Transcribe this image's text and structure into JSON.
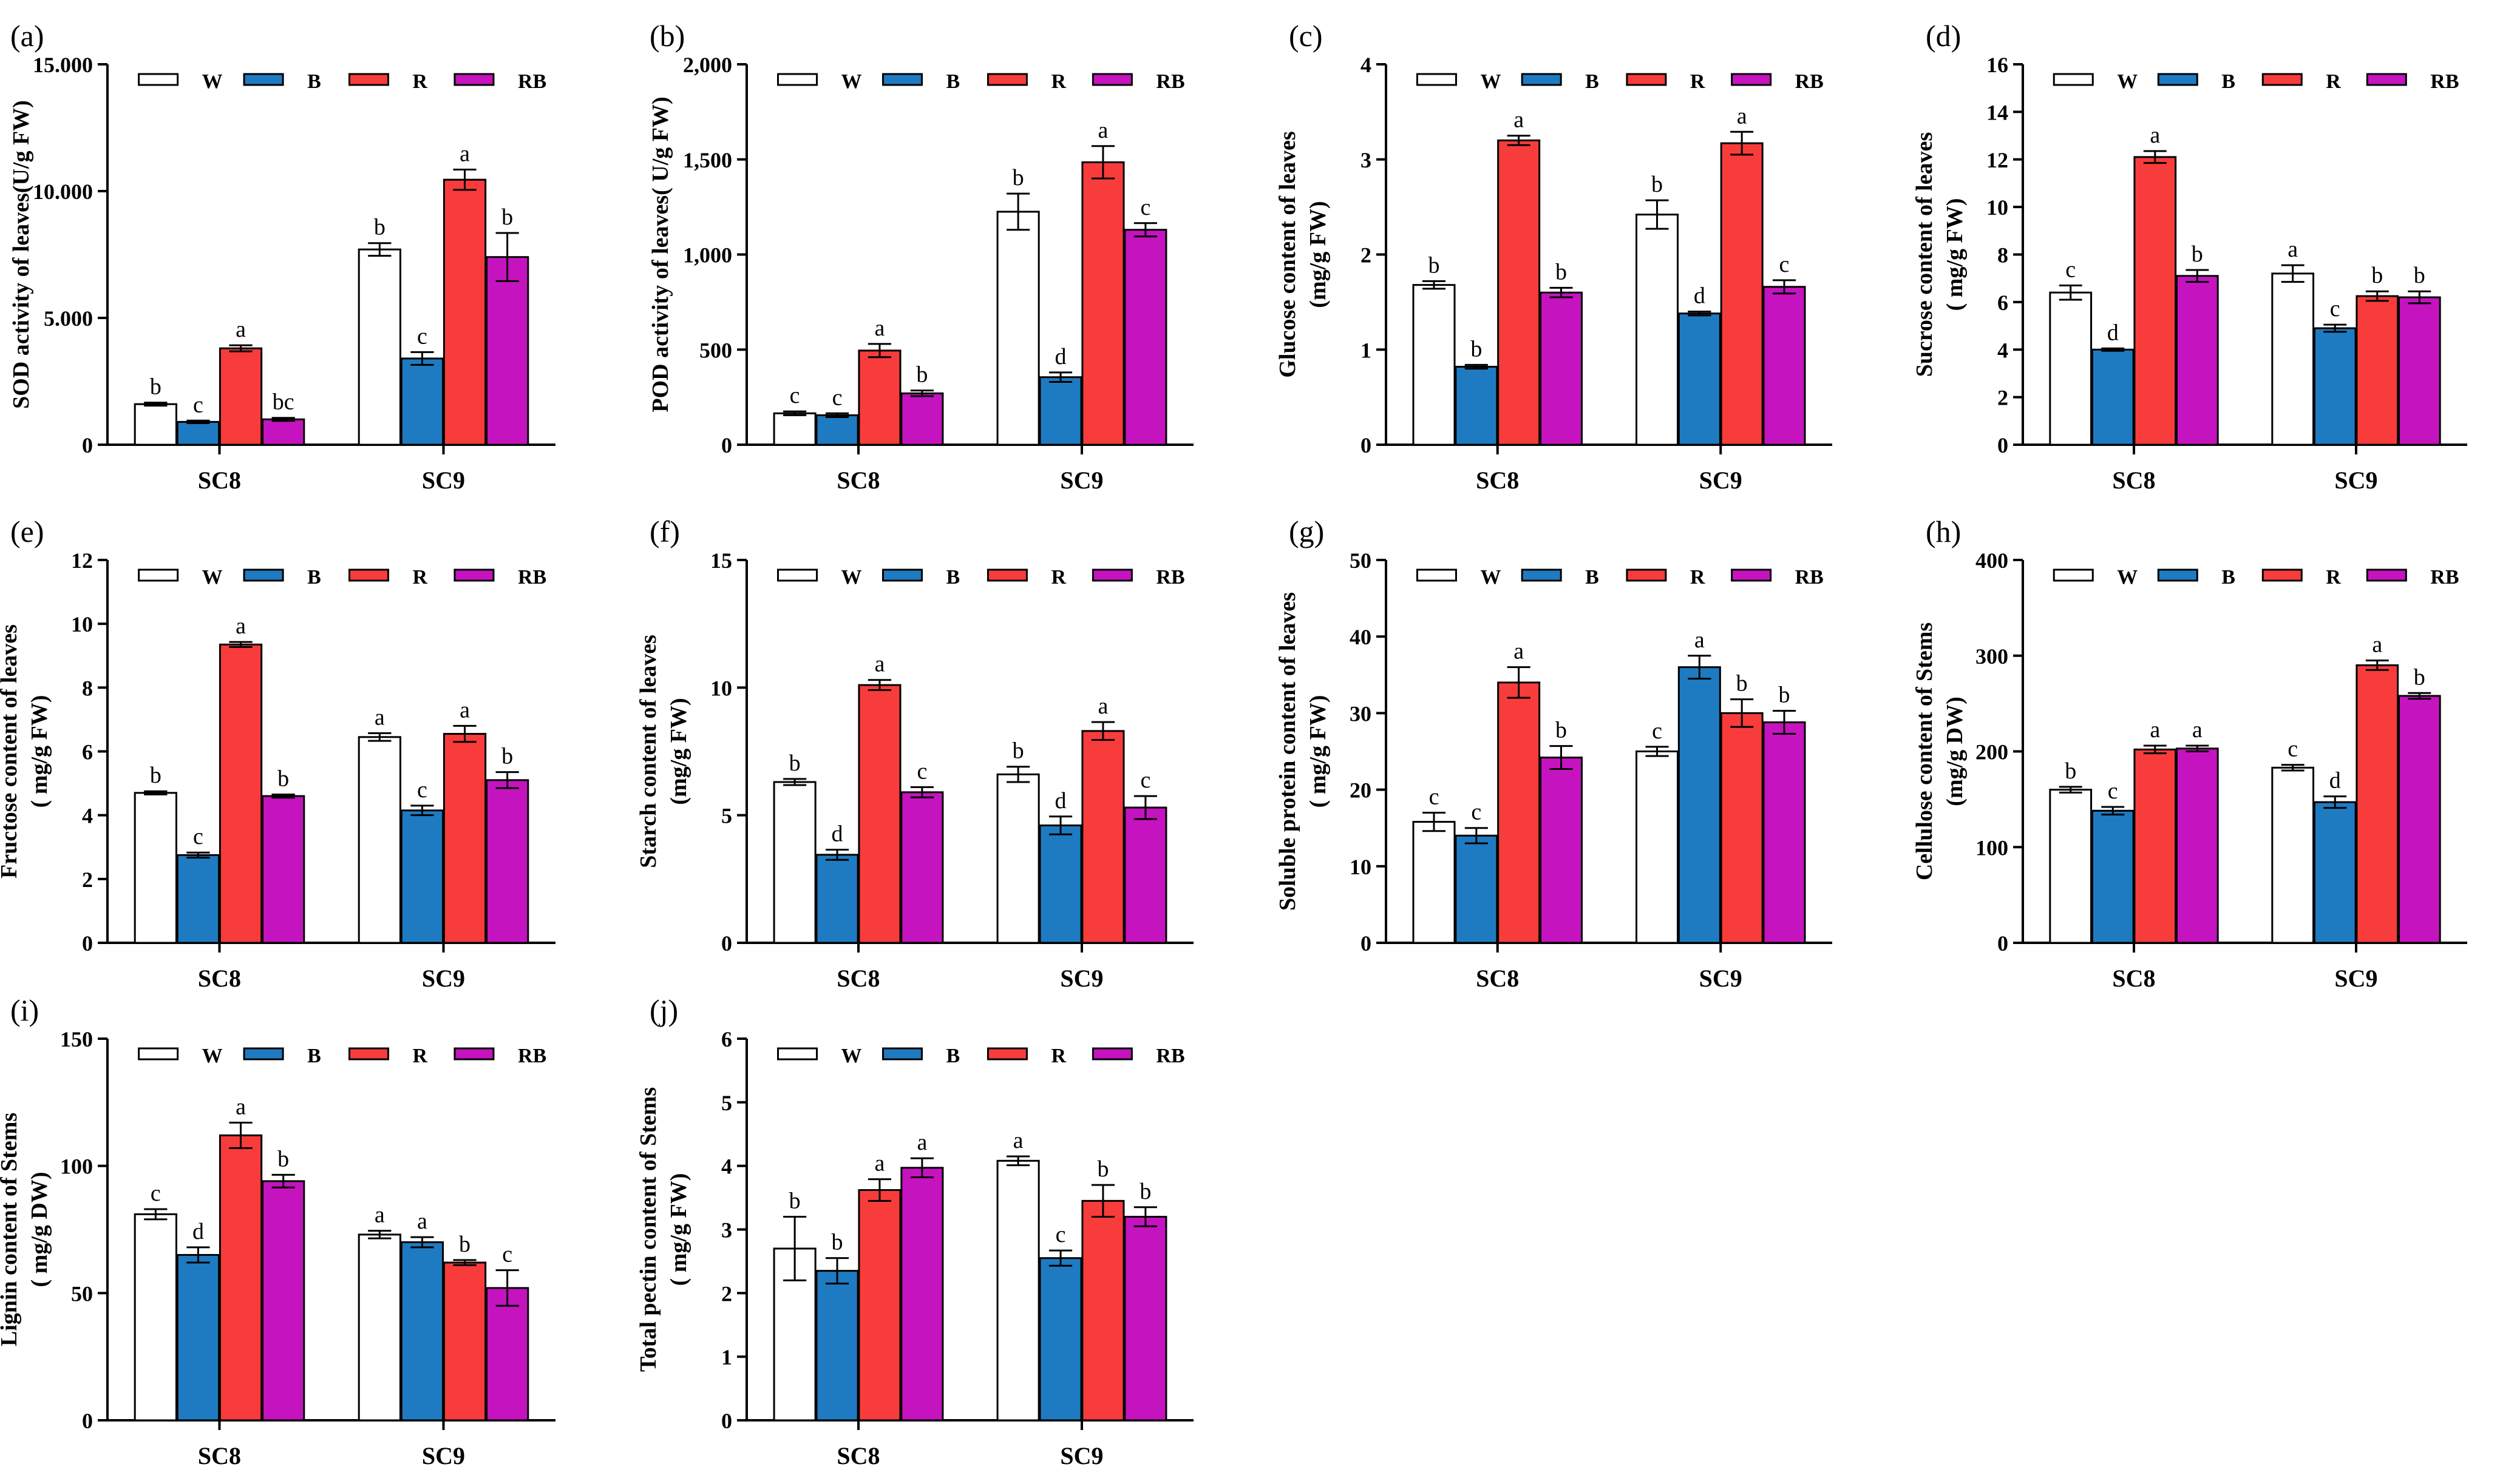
{
  "legend": {
    "labels": [
      "W",
      "B",
      "R",
      "RB"
    ],
    "colors": [
      "#ffffff",
      "#1f7bc1",
      "#f83c3c",
      "#c613c0"
    ]
  },
  "chart_data": [
    {
      "panel": "(a)",
      "type": "bar",
      "ylabel": [
        "SOD activity of leaves(U/g FW)"
      ],
      "ylim": [
        0,
        15000
      ],
      "ytick_values": [
        0,
        5000,
        10000,
        15000
      ],
      "ytick_labels": [
        "0",
        "5.000",
        "10.000",
        "15.000"
      ],
      "categories": [
        "SC8",
        "SC9"
      ],
      "series": [
        {
          "name": "W",
          "values": [
            1600,
            7700
          ],
          "errors": [
            60,
            250
          ],
          "letters": [
            "b",
            "b"
          ]
        },
        {
          "name": "B",
          "values": [
            900,
            3400
          ],
          "errors": [
            50,
            250
          ],
          "letters": [
            "c",
            "c"
          ]
        },
        {
          "name": "R",
          "values": [
            3800,
            10450
          ],
          "errors": [
            120,
            400
          ],
          "letters": [
            "a",
            "a"
          ]
        },
        {
          "name": "RB",
          "values": [
            1000,
            7400
          ],
          "errors": [
            60,
            950
          ],
          "letters": [
            "bc",
            "b"
          ]
        }
      ]
    },
    {
      "panel": "(b)",
      "type": "bar",
      "ylabel": [
        "POD activity of leaves( U/g FW)"
      ],
      "ylim": [
        0,
        2000
      ],
      "ytick_values": [
        0,
        500,
        1000,
        1500,
        2000
      ],
      "ytick_labels": [
        "0",
        "500",
        "1,000",
        "1,500",
        "2,000"
      ],
      "categories": [
        "SC8",
        "SC9"
      ],
      "series": [
        {
          "name": "W",
          "values": [
            165,
            1225
          ],
          "errors": [
            10,
            95
          ],
          "letters": [
            "c",
            "b"
          ]
        },
        {
          "name": "B",
          "values": [
            155,
            355
          ],
          "errors": [
            10,
            25
          ],
          "letters": [
            "c",
            "d"
          ]
        },
        {
          "name": "R",
          "values": [
            495,
            1485
          ],
          "errors": [
            35,
            85
          ],
          "letters": [
            "a",
            "a"
          ]
        },
        {
          "name": "RB",
          "values": [
            270,
            1130
          ],
          "errors": [
            15,
            35
          ],
          "letters": [
            "b",
            "c"
          ]
        }
      ]
    },
    {
      "panel": "(c)",
      "type": "bar",
      "ylabel": [
        "Glucose content of leaves",
        "(mg/g FW)"
      ],
      "ylim": [
        0,
        4
      ],
      "ytick_values": [
        0,
        1,
        2,
        3,
        4
      ],
      "ytick_labels": [
        "0",
        "1",
        "2",
        "3",
        "4"
      ],
      "categories": [
        "SC8",
        "SC9"
      ],
      "series": [
        {
          "name": "W",
          "values": [
            1.68,
            2.42
          ],
          "errors": [
            0.04,
            0.15
          ],
          "letters": [
            "b",
            "b"
          ]
        },
        {
          "name": "B",
          "values": [
            0.82,
            1.38
          ],
          "errors": [
            0.02,
            0.02
          ],
          "letters": [
            "b",
            "d"
          ]
        },
        {
          "name": "R",
          "values": [
            3.2,
            3.17
          ],
          "errors": [
            0.05,
            0.12
          ],
          "letters": [
            "a",
            "a"
          ]
        },
        {
          "name": "RB",
          "values": [
            1.6,
            1.66
          ],
          "errors": [
            0.05,
            0.07
          ],
          "letters": [
            "b",
            "c"
          ]
        }
      ]
    },
    {
      "panel": "(d)",
      "type": "bar",
      "ylabel": [
        "Sucrose content of leaves",
        "( mg/g FW)"
      ],
      "ylim": [
        0,
        16
      ],
      "ytick_values": [
        0,
        2,
        4,
        6,
        8,
        10,
        12,
        14,
        16
      ],
      "ytick_labels": [
        "0",
        "2",
        "4",
        "6",
        "8",
        "10",
        "12",
        "14",
        "16"
      ],
      "categories": [
        "SC8",
        "SC9"
      ],
      "series": [
        {
          "name": "W",
          "values": [
            6.4,
            7.2
          ],
          "errors": [
            0.3,
            0.35
          ],
          "letters": [
            "c",
            "a"
          ]
        },
        {
          "name": "B",
          "values": [
            4.0,
            4.9
          ],
          "errors": [
            0.05,
            0.15
          ],
          "letters": [
            "d",
            "c"
          ]
        },
        {
          "name": "R",
          "values": [
            12.1,
            6.25
          ],
          "errors": [
            0.25,
            0.2
          ],
          "letters": [
            "a",
            "b"
          ]
        },
        {
          "name": "RB",
          "values": [
            7.1,
            6.2
          ],
          "errors": [
            0.25,
            0.25
          ],
          "letters": [
            "b",
            "b"
          ]
        }
      ]
    },
    {
      "panel": "(e)",
      "type": "bar",
      "ylabel": [
        "Fructose content of leaves",
        "( mg/g FW)"
      ],
      "ylim": [
        0,
        12
      ],
      "ytick_values": [
        0,
        2,
        4,
        6,
        8,
        10,
        12
      ],
      "ytick_labels": [
        "0",
        "2",
        "4",
        "6",
        "8",
        "10",
        "12"
      ],
      "categories": [
        "SC8",
        "SC9"
      ],
      "series": [
        {
          "name": "W",
          "values": [
            4.7,
            6.45
          ],
          "errors": [
            0.05,
            0.12
          ],
          "letters": [
            "b",
            "a"
          ]
        },
        {
          "name": "B",
          "values": [
            2.75,
            4.15
          ],
          "errors": [
            0.08,
            0.15
          ],
          "letters": [
            "c",
            "c"
          ]
        },
        {
          "name": "R",
          "values": [
            9.35,
            6.55
          ],
          "errors": [
            0.08,
            0.25
          ],
          "letters": [
            "a",
            "a"
          ]
        },
        {
          "name": "RB",
          "values": [
            4.6,
            5.1
          ],
          "errors": [
            0.05,
            0.25
          ],
          "letters": [
            "b",
            "b"
          ]
        }
      ]
    },
    {
      "panel": "(f)",
      "type": "bar",
      "ylabel": [
        "Starch content of leaves",
        "(mg/g FW)"
      ],
      "ylim": [
        0,
        15
      ],
      "ytick_values": [
        0,
        5,
        10,
        15
      ],
      "ytick_labels": [
        "0",
        "5",
        "10",
        "15"
      ],
      "categories": [
        "SC8",
        "SC9"
      ],
      "series": [
        {
          "name": "W",
          "values": [
            6.3,
            6.6
          ],
          "errors": [
            0.12,
            0.3
          ],
          "letters": [
            "b",
            "b"
          ]
        },
        {
          "name": "B",
          "values": [
            3.45,
            4.6
          ],
          "errors": [
            0.2,
            0.35
          ],
          "letters": [
            "d",
            "d"
          ]
        },
        {
          "name": "R",
          "values": [
            10.1,
            8.3
          ],
          "errors": [
            0.2,
            0.35
          ],
          "letters": [
            "a",
            "a"
          ]
        },
        {
          "name": "RB",
          "values": [
            5.9,
            5.3
          ],
          "errors": [
            0.2,
            0.45
          ],
          "letters": [
            "c",
            "c"
          ]
        }
      ]
    },
    {
      "panel": "(g)",
      "type": "bar",
      "ylabel": [
        "Soluble protein content of leaves",
        "( mg/g FW)"
      ],
      "ylim": [
        0,
        50
      ],
      "ytick_values": [
        0,
        10,
        20,
        30,
        40,
        50
      ],
      "ytick_labels": [
        "0",
        "10",
        "20",
        "30",
        "40",
        "50"
      ],
      "categories": [
        "SC8",
        "SC9"
      ],
      "series": [
        {
          "name": "W",
          "values": [
            15.8,
            25.0
          ],
          "errors": [
            1.2,
            0.6
          ],
          "letters": [
            "c",
            "c"
          ]
        },
        {
          "name": "B",
          "values": [
            14.0,
            36.0
          ],
          "errors": [
            1.0,
            1.5
          ],
          "letters": [
            "c",
            "a"
          ]
        },
        {
          "name": "R",
          "values": [
            34.0,
            30.0
          ],
          "errors": [
            2.0,
            1.8
          ],
          "letters": [
            "a",
            "b"
          ]
        },
        {
          "name": "RB",
          "values": [
            24.2,
            28.8
          ],
          "errors": [
            1.5,
            1.5
          ],
          "letters": [
            "b",
            "b"
          ]
        }
      ]
    },
    {
      "panel": "(h)",
      "type": "bar",
      "ylabel": [
        "Cellulose content of Stems",
        "(mg/g DW)"
      ],
      "ylim": [
        0,
        400
      ],
      "ytick_values": [
        0,
        100,
        200,
        300,
        400
      ],
      "ytick_labels": [
        "0",
        "100",
        "200",
        "300",
        "400"
      ],
      "categories": [
        "SC8",
        "SC9"
      ],
      "series": [
        {
          "name": "W",
          "values": [
            160,
            183
          ],
          "errors": [
            3,
            3
          ],
          "letters": [
            "b",
            "c"
          ]
        },
        {
          "name": "B",
          "values": [
            138,
            147
          ],
          "errors": [
            4,
            6
          ],
          "letters": [
            "c",
            "d"
          ]
        },
        {
          "name": "R",
          "values": [
            202,
            290
          ],
          "errors": [
            4,
            5
          ],
          "letters": [
            "a",
            "a"
          ]
        },
        {
          "name": "RB",
          "values": [
            203,
            258
          ],
          "errors": [
            3,
            3
          ],
          "letters": [
            "a",
            "b"
          ]
        }
      ]
    },
    {
      "panel": "(i)",
      "type": "bar",
      "ylabel": [
        "Lignin content of Stems",
        "( mg/g DW)"
      ],
      "ylim": [
        0,
        150
      ],
      "ytick_values": [
        0,
        50,
        100,
        150
      ],
      "ytick_labels": [
        "0",
        "50",
        "100",
        "150"
      ],
      "categories": [
        "SC8",
        "SC9"
      ],
      "series": [
        {
          "name": "W",
          "values": [
            81,
            73
          ],
          "errors": [
            2,
            1.5
          ],
          "letters": [
            "c",
            "a"
          ]
        },
        {
          "name": "B",
          "values": [
            65,
            70
          ],
          "errors": [
            3,
            2
          ],
          "letters": [
            "d",
            "a"
          ]
        },
        {
          "name": "R",
          "values": [
            112,
            62
          ],
          "errors": [
            5,
            1
          ],
          "letters": [
            "a",
            "b"
          ]
        },
        {
          "name": "RB",
          "values": [
            94,
            52
          ],
          "errors": [
            2.5,
            7
          ],
          "letters": [
            "b",
            "c"
          ]
        }
      ]
    },
    {
      "panel": "(j)",
      "type": "bar",
      "ylabel": [
        "Total pectin content of Stems",
        "( mg/g FW)"
      ],
      "ylim": [
        0,
        6
      ],
      "ytick_values": [
        0,
        1,
        2,
        3,
        4,
        5,
        6
      ],
      "ytick_labels": [
        "0",
        "1",
        "2",
        "3",
        "4",
        "5",
        "6"
      ],
      "categories": [
        "SC8",
        "SC9"
      ],
      "series": [
        {
          "name": "W",
          "values": [
            2.7,
            4.08
          ],
          "errors": [
            0.5,
            0.07
          ],
          "letters": [
            "b",
            "a"
          ]
        },
        {
          "name": "B",
          "values": [
            2.35,
            2.55
          ],
          "errors": [
            0.2,
            0.12
          ],
          "letters": [
            "b",
            "c"
          ]
        },
        {
          "name": "R",
          "values": [
            3.62,
            3.45
          ],
          "errors": [
            0.17,
            0.25
          ],
          "letters": [
            "a",
            "b"
          ]
        },
        {
          "name": "RB",
          "values": [
            3.97,
            3.2
          ],
          "errors": [
            0.15,
            0.15
          ],
          "letters": [
            "a",
            "b"
          ]
        }
      ]
    }
  ]
}
